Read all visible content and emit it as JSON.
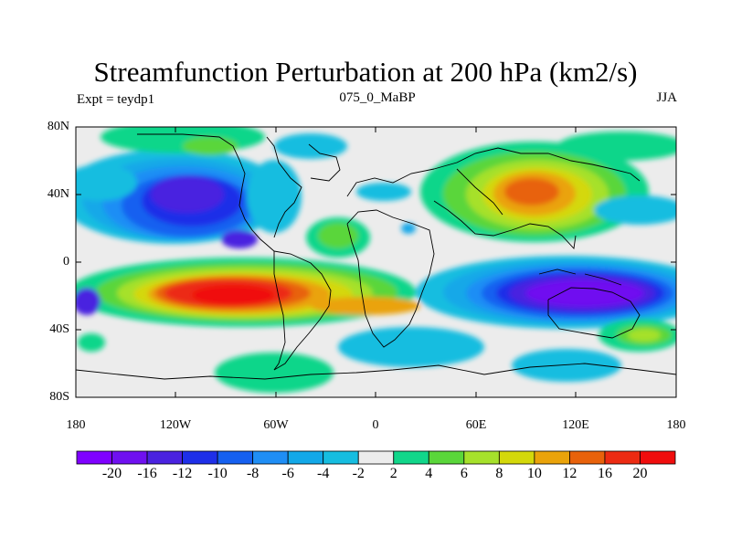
{
  "title": "Streamfunction Perturbation at 200 hPa (km2/s)",
  "subtitle_left": "Expt = teydp1",
  "subtitle_center": "075_0_MaBP",
  "subtitle_right": "JJA",
  "lat_labels": [
    "80N",
    "40N",
    "0",
    "40S",
    "80S"
  ],
  "lon_labels": [
    "180",
    "120W",
    "60W",
    "0",
    "60E",
    "120E",
    "180"
  ],
  "colorbar_labels": [
    "-20",
    "-16",
    "-12",
    "-10",
    "-8",
    "-6",
    "-4",
    "-2",
    "2",
    "4",
    "6",
    "8",
    "10",
    "12",
    "16",
    "20"
  ],
  "colorbar_colors": [
    "#7f00ff",
    "#6f10f0",
    "#4a22e0",
    "#1e2fe8",
    "#1560f0",
    "#1f8ef5",
    "#12a8e8",
    "#16bde0",
    "#ececec",
    "#11d68a",
    "#5ad63a",
    "#a6e12b",
    "#d4d80a",
    "#eaa30a",
    "#e8620b",
    "#ec2b12",
    "#f00d0d"
  ]
}
